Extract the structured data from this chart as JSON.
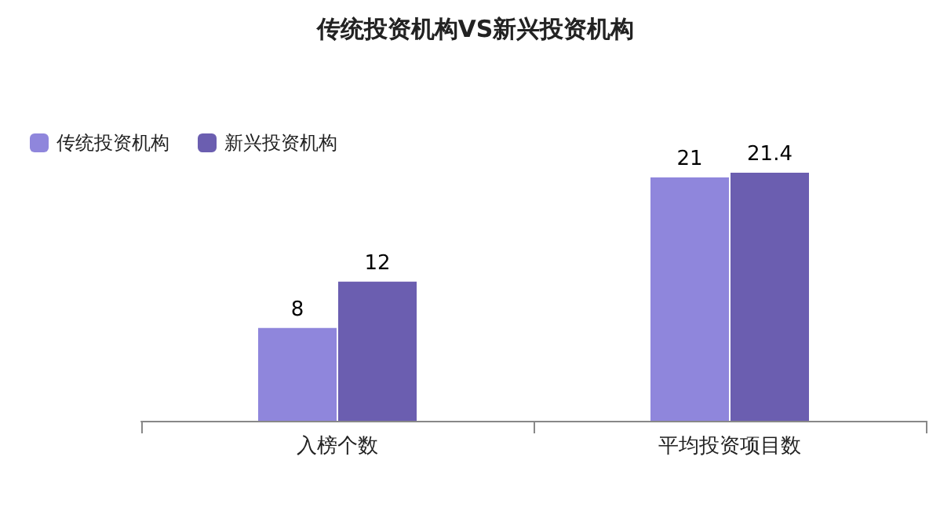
{
  "chart_data": {
    "type": "bar",
    "title": "传统投资机构VS新兴投资机构",
    "categories": [
      "入榜个数",
      "平均投资项目数"
    ],
    "series": [
      {
        "name": "传统投资机构",
        "color": "#8f86dc",
        "values": [
          8,
          21
        ]
      },
      {
        "name": "新兴投资机构",
        "color": "#6b5eb0",
        "values": [
          12,
          21.4
        ]
      }
    ],
    "data_labels": true,
    "legend": "top left"
  }
}
